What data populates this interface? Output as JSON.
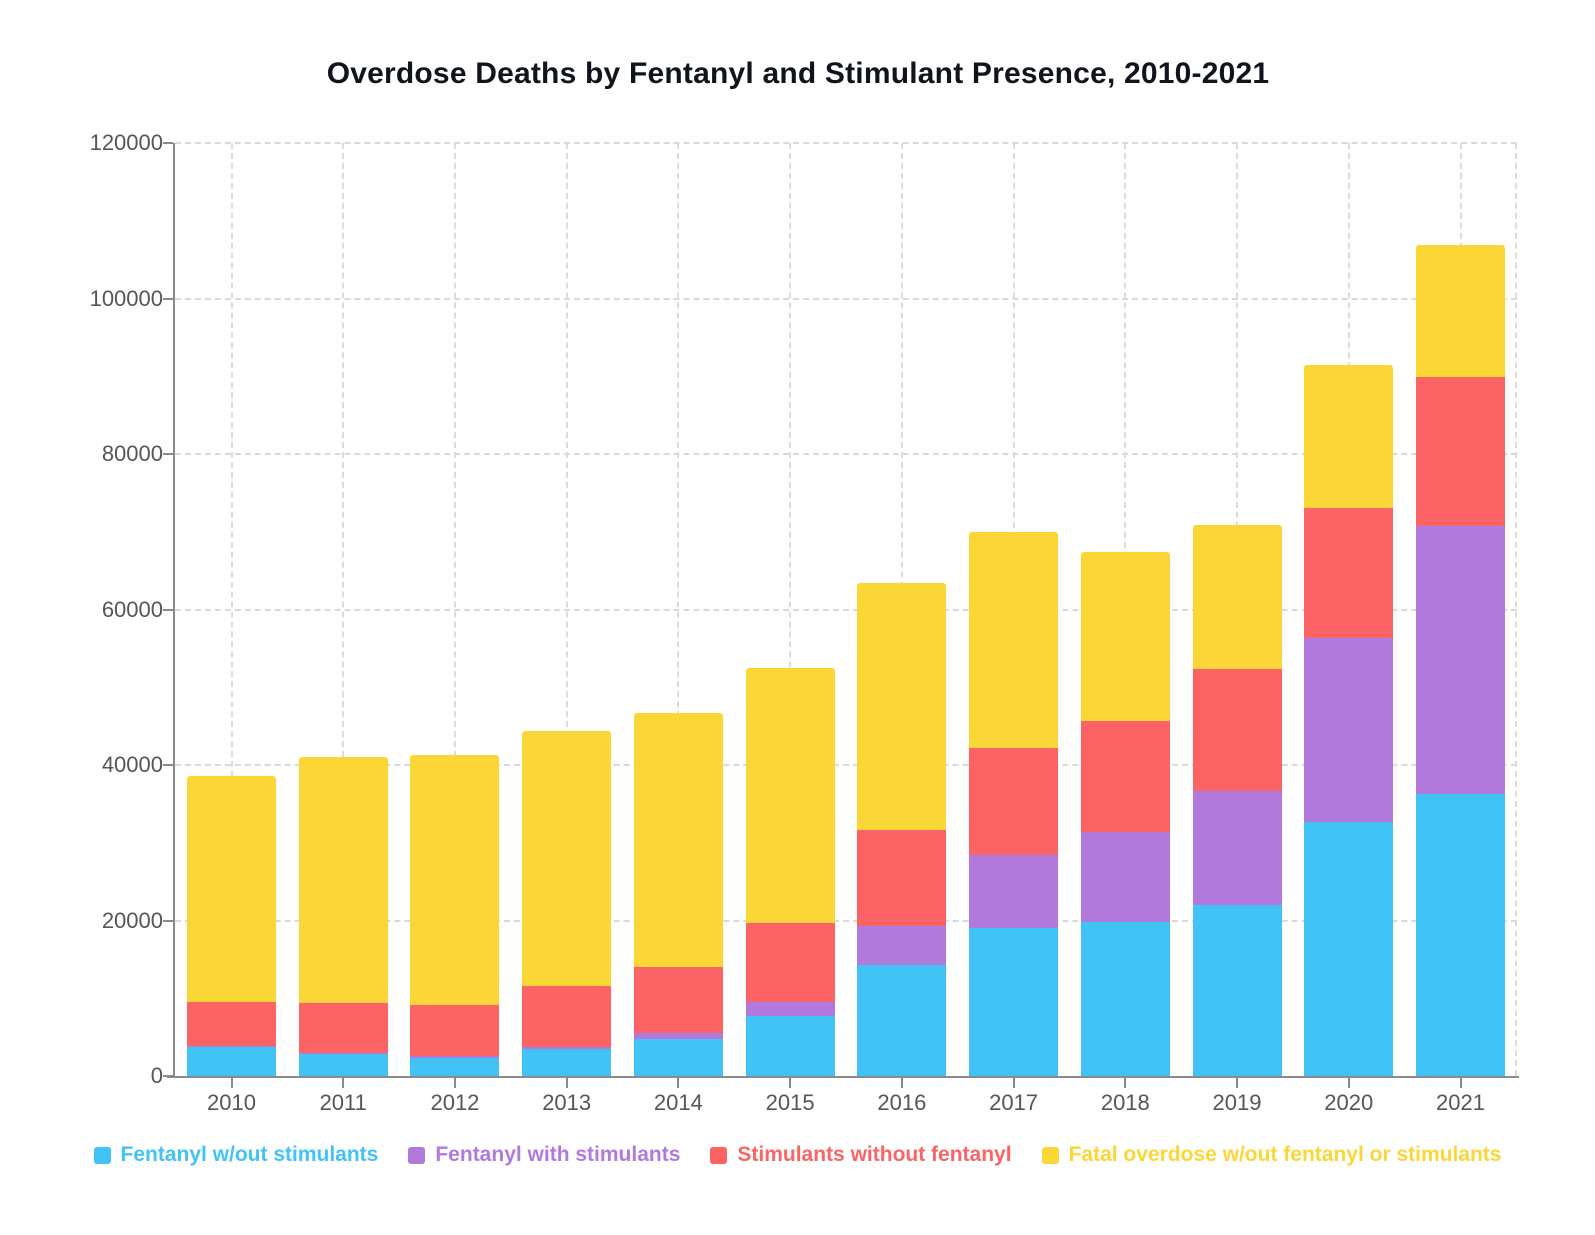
{
  "title": "Overdose Deaths by Fentanyl and Stimulant Presence, 2010-2021",
  "colors": {
    "blue": "#41c3f5",
    "purple": "#b279dd",
    "red": "#fb6364",
    "yellow": "#fbd637",
    "title_text": "#10141d",
    "axis_text": "#565656",
    "axis_line": "#8a8a8a",
    "gridline": "#d9d9d9"
  },
  "y_axis": {
    "tick_values": [
      0,
      20000,
      40000,
      60000,
      80000,
      100000,
      120000
    ],
    "tick_labels": [
      "0",
      "20000",
      "40000",
      "60000",
      "80000",
      "100000",
      "120000"
    ],
    "max": 120000
  },
  "chart_data": {
    "type": "bar",
    "stacked": true,
    "title": "Overdose Deaths by Fentanyl and Stimulant Presence, 2010-2021",
    "xlabel": "",
    "ylabel": "",
    "ylim": [
      0,
      120000
    ],
    "grid": true,
    "legend_position": "bottom",
    "categories": [
      "2010",
      "2011",
      "2012",
      "2013",
      "2014",
      "2015",
      "2016",
      "2017",
      "2018",
      "2019",
      "2020",
      "2021"
    ],
    "series": [
      {
        "name": "Fentanyl w/out stimulants",
        "color_key": "blue",
        "values": [
          3750,
          2800,
          2350,
          3500,
          4700,
          7750,
          14300,
          19100,
          19850,
          21950,
          32650,
          36300
        ]
      },
      {
        "name": "Fentanyl with stimulants",
        "color_key": "purple",
        "values": [
          150,
          170,
          170,
          200,
          850,
          1800,
          4950,
          9300,
          11500,
          14700,
          23700,
          34400
        ]
      },
      {
        "name": "Stimulants without fentanyl",
        "color_key": "red",
        "values": [
          5650,
          6400,
          6650,
          7850,
          8450,
          10150,
          12350,
          13750,
          14350,
          15650,
          16700,
          19150
        ]
      },
      {
        "name": "Fatal overdose w/out fentanyl or stimulants",
        "color_key": "yellow",
        "values": [
          29100,
          31700,
          32100,
          32800,
          32700,
          32750,
          31800,
          27850,
          21650,
          18600,
          18400,
          17050
        ]
      }
    ],
    "totals": [
      38650,
      41070,
      41270,
      44350,
      46700,
      52450,
      63400,
      70000,
      67350,
      70900,
      91450,
      106900
    ]
  },
  "legend": {
    "items": [
      {
        "label": "Fentanyl w/out stimulants",
        "color_key": "blue"
      },
      {
        "label": "Fentanyl with stimulants",
        "color_key": "purple"
      },
      {
        "label": "Stimulants without fentanyl",
        "color_key": "red"
      },
      {
        "label": "Fatal overdose w/out fentanyl or stimulants",
        "color_key": "yellow"
      }
    ]
  }
}
